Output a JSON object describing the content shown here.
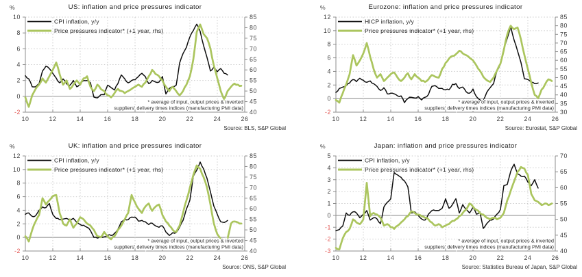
{
  "page": {
    "background": "#ffffff"
  },
  "colors": {
    "cpi_line": "#0d0d0d",
    "pressure_line": "#abc55e",
    "negative_tick": "#e25552",
    "grid": "#cbcbcb",
    "zero_line": "#9e9e9e",
    "axis": "#8c8c8c",
    "text": "#1a1a1a"
  },
  "chart_data": [
    {
      "type": "line",
      "title": "US: inflation and price pressures indicator",
      "unit_label": "%",
      "x_range": [
        2010,
        2026
      ],
      "x_ticks": [
        10,
        12,
        14,
        16,
        18,
        20,
        22,
        24,
        26
      ],
      "left_axis": {
        "range": [
          -2,
          10
        ],
        "ticks": [
          10,
          8,
          6,
          4,
          2,
          0,
          -2
        ]
      },
      "right_axis": {
        "range": [
          40,
          85
        ],
        "ticks": [
          85,
          80,
          75,
          70,
          65,
          60,
          55,
          50,
          45,
          40
        ]
      },
      "series": [
        {
          "name": "CPI inflation, y/y",
          "axis": "left",
          "x_start": 2010,
          "x_step": 0.25,
          "values": [
            2.6,
            2.2,
            1.2,
            1.2,
            1.6,
            3.2,
            3.8,
            3.5,
            2.9,
            2.3,
            1.7,
            2.2,
            1.6,
            1.4,
            2.0,
            1.2,
            1.6,
            2.0,
            2.0,
            1.7,
            -0.1,
            -0.2,
            0.2,
            0.2,
            1.4,
            1.1,
            0.8,
            1.6,
            2.7,
            2.2,
            1.7,
            2.0,
            2.1,
            2.5,
            2.9,
            2.5,
            1.6,
            2.0,
            1.8,
            1.8,
            2.5,
            0.3,
            1.0,
            1.2,
            1.4,
            4.2,
            5.4,
            6.2,
            7.5,
            8.3,
            9.1,
            8.2,
            6.4,
            4.9,
            3.2,
            3.7,
            3.1,
            3.5,
            2.9,
            2.7
          ]
        },
        {
          "name": "Price pressures indicator* (+1 year, rhs)",
          "axis": "right",
          "x_start": 2010,
          "x_step": 0.25,
          "values": [
            47,
            42.5,
            48,
            51,
            53,
            56,
            54,
            57,
            60,
            63.5,
            58,
            53,
            55,
            51,
            53,
            55,
            53,
            56,
            57,
            52,
            50,
            53,
            51,
            50,
            48,
            47,
            49,
            51,
            50,
            49,
            50,
            51,
            52,
            53,
            52,
            54,
            57,
            60,
            58,
            57,
            55,
            52,
            50,
            52,
            50,
            48,
            50,
            53,
            57,
            65,
            78,
            81.5,
            77,
            75,
            70,
            62,
            56,
            50,
            46,
            50,
            52,
            53.5,
            53,
            52.5
          ]
        }
      ],
      "footnote_lines": [
        "* average of input, output prices & inverted",
        "suppliers' delivery times indices (manufacturing PMI data)"
      ],
      "source": "Source: BLS, S&P Global"
    },
    {
      "type": "line",
      "title": "Eurozone: inflation and price pressures indicator",
      "unit_label": "%",
      "x_range": [
        2010,
        2026
      ],
      "x_ticks": [
        10,
        12,
        14,
        16,
        18,
        20,
        22,
        24,
        26
      ],
      "left_axis": {
        "range": [
          -2,
          12
        ],
        "ticks": [
          12,
          10,
          8,
          6,
          4,
          2,
          0,
          -2
        ]
      },
      "right_axis": {
        "range": [
          30,
          85
        ],
        "ticks": [
          85,
          80,
          75,
          70,
          65,
          60,
          55,
          50,
          45,
          40,
          35,
          30
        ]
      },
      "series": [
        {
          "name": "HICP inflation, y/y",
          "axis": "left",
          "x_start": 2010,
          "x_step": 0.25,
          "values": [
            0.9,
            1.5,
            1.7,
            1.9,
            2.3,
            2.8,
            2.5,
            3.0,
            2.7,
            2.4,
            2.6,
            2.2,
            1.8,
            1.2,
            1.6,
            0.7,
            0.8,
            0.7,
            0.4,
            0.4,
            -0.6,
            0.0,
            0.2,
            0.1,
            0.3,
            -0.2,
            0.2,
            0.6,
            1.8,
            1.9,
            1.5,
            1.5,
            1.3,
            1.3,
            2.1,
            2.2,
            1.5,
            1.7,
            1.0,
            0.8,
            1.4,
            0.3,
            -0.2,
            -0.3,
            0.9,
            1.6,
            2.2,
            4.1,
            5.1,
            7.4,
            8.9,
            10.6,
            8.6,
            7.0,
            5.3,
            2.9,
            2.8,
            2.4,
            2.2,
            2.3
          ]
        },
        {
          "name": "Price pressures indicator* (+1 year, rhs)",
          "axis": "right",
          "x_start": 2010,
          "x_step": 0.25,
          "values": [
            37,
            35.5,
            41,
            46,
            52,
            63,
            57,
            60,
            64,
            70,
            62,
            55,
            50,
            52,
            48,
            50,
            52,
            53,
            50,
            48,
            50,
            52.5,
            49,
            52,
            50,
            48,
            47.5,
            49,
            51.5,
            50.5,
            50,
            55,
            58.5,
            61,
            62.5,
            63.5,
            65.5,
            64,
            63,
            61.5,
            60,
            57,
            54,
            50.5,
            48.5,
            47.5,
            50,
            54,
            58,
            66,
            75,
            80,
            78,
            79,
            72,
            63,
            55,
            47,
            40,
            38,
            43,
            46,
            49,
            48
          ]
        }
      ],
      "footnote_lines": [
        "* average of input, output prices & inverted",
        "suppliers' delivery times indices (manufacturing PMI data)"
      ],
      "source": "Source: Eurostat, S&P Global"
    },
    {
      "type": "line",
      "title": "UK: inflation and price pressures indicator",
      "unit_label": "%",
      "x_range": [
        2010,
        2026
      ],
      "x_ticks": [
        10,
        12,
        14,
        16,
        18,
        20,
        22,
        24,
        26
      ],
      "left_axis": {
        "range": [
          -2,
          12
        ],
        "ticks": [
          12,
          10,
          8,
          6,
          4,
          2,
          0,
          -2
        ]
      },
      "right_axis": {
        "range": [
          40,
          85
        ],
        "ticks": [
          85,
          80,
          75,
          70,
          65,
          60,
          55,
          50,
          45,
          40
        ]
      },
      "series": [
        {
          "name": "CPI inflation, y/y",
          "axis": "left",
          "x_start": 2010,
          "x_step": 0.25,
          "values": [
            3.4,
            3.6,
            3.1,
            3.2,
            4.0,
            4.5,
            4.4,
            5.0,
            3.4,
            2.8,
            2.6,
            2.7,
            2.8,
            2.4,
            2.8,
            2.2,
            1.9,
            1.8,
            1.5,
            1.0,
            0.0,
            -0.1,
            0.1,
            0.1,
            0.3,
            0.3,
            0.6,
            1.2,
            2.3,
            2.7,
            2.6,
            3.0,
            3.0,
            2.4,
            2.5,
            2.3,
            1.9,
            2.1,
            1.7,
            1.5,
            1.7,
            0.8,
            0.3,
            0.7,
            0.7,
            1.5,
            2.5,
            4.2,
            5.5,
            9.0,
            9.9,
            11.1,
            10.1,
            8.7,
            6.7,
            4.6,
            3.4,
            2.3,
            2.2,
            2.5
          ]
        },
        {
          "name": "Price pressures indicator* (+1 year, rhs)",
          "axis": "right",
          "x_start": 2010,
          "x_step": 0.25,
          "values": [
            47,
            44.5,
            50,
            54,
            57,
            65,
            62,
            64,
            66,
            66.5,
            58,
            53,
            52,
            55,
            51,
            53,
            56,
            55,
            53,
            52,
            50,
            47,
            46.5,
            49,
            47,
            45.5,
            47,
            50,
            52,
            55,
            58,
            66.5,
            63,
            60,
            58,
            61,
            62.5,
            59,
            61,
            62,
            57,
            54,
            52,
            50,
            49,
            52,
            58,
            64,
            70,
            76,
            80.5,
            79,
            75,
            70,
            62,
            53,
            48,
            46,
            44,
            46,
            53,
            54,
            53.5,
            53
          ]
        }
      ],
      "footnote_lines": [
        "* average of input, output prices & inverted",
        "suppliers' delivery times indices (manufacturing PMI data)"
      ],
      "source": "Source: ONS, S&P Global"
    },
    {
      "type": "line",
      "title": "Japan: inflation and price pressures indicator",
      "unit_label": "%",
      "x_range": [
        2010,
        2026
      ],
      "x_ticks": [
        10,
        12,
        14,
        16,
        18,
        20,
        22,
        24,
        26
      ],
      "left_axis": {
        "range": [
          -3,
          5
        ],
        "ticks": [
          5,
          4,
          3,
          2,
          1,
          0,
          -1,
          -2,
          -3
        ]
      },
      "right_axis": {
        "range": [
          40,
          70
        ],
        "ticks": [
          70,
          65,
          60,
          55,
          50,
          45,
          40
        ]
      },
      "series": [
        {
          "name": "CPI inflation, y/y",
          "axis": "left",
          "x_start": 2010,
          "x_step": 0.25,
          "values": [
            -1.3,
            -1.2,
            -0.9,
            0.2,
            0.0,
            0.3,
            0.2,
            -0.2,
            0.1,
            0.4,
            -0.4,
            -0.2,
            -0.3,
            -0.7,
            0.7,
            1.1,
            1.4,
            3.6,
            3.4,
            3.2,
            2.9,
            2.4,
            0.2,
            0.3,
            0.0,
            -0.3,
            -0.4,
            0.1,
            0.4,
            0.4,
            0.4,
            0.6,
            1.4,
            0.6,
            0.9,
            1.4,
            0.2,
            0.9,
            0.5,
            0.2,
            0.7,
            0.1,
            0.3,
            -1.1,
            -0.7,
            -0.4,
            -0.3,
            0.1,
            0.5,
            2.5,
            2.6,
            3.7,
            4.3,
            3.5,
            3.3,
            3.3,
            2.8,
            2.5,
            3.0,
            2.3
          ]
        },
        {
          "name": "Price pressures indicator* (+1 year, rhs)",
          "axis": "right",
          "x_start": 2010,
          "x_step": 0.25,
          "values": [
            41,
            40.5,
            44,
            46,
            47,
            50,
            49,
            48.5,
            50,
            61.5,
            51,
            52,
            51.5,
            50.5,
            48,
            48.5,
            47.5,
            47,
            48,
            49,
            50,
            51,
            52.5,
            52,
            51.5,
            51,
            50.5,
            50,
            49,
            48,
            48.5,
            47.5,
            48,
            48.5,
            49.5,
            50,
            51,
            52,
            53,
            55,
            54,
            53,
            52,
            51.5,
            50.5,
            50,
            50.5,
            50,
            50.5,
            52,
            56,
            59,
            62,
            65,
            66.5,
            66,
            64,
            58,
            56,
            55.5,
            54.5,
            55,
            54.5,
            55
          ]
        }
      ],
      "footnote_lines": [
        "* average of input, output prices & inverted",
        "suppliers' delivery times indices (manufacturing PMI data)"
      ],
      "source": "Source: Statistics Bureau of Japan, S&P Global"
    }
  ]
}
